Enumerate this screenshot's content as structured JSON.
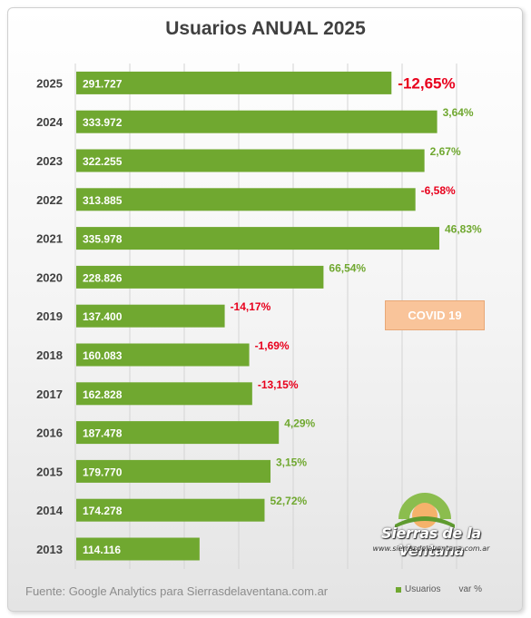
{
  "chart_data": {
    "type": "bar",
    "orientation": "horizontal",
    "title": "Usuarios ANUAL 2025",
    "categories": [
      "2025",
      "2024",
      "2023",
      "2022",
      "2021",
      "2020",
      "2019",
      "2018",
      "2017",
      "2016",
      "2015",
      "2014",
      "2013"
    ],
    "series": [
      {
        "name": "Usuarios",
        "values": [
          291727,
          333972,
          322255,
          313885,
          335978,
          228826,
          137400,
          160083,
          162828,
          187478,
          179770,
          174278,
          114116
        ],
        "value_labels": [
          "291.727",
          "333.972",
          "322.255",
          "313.885",
          "335.978",
          "228.826",
          "137.400",
          "160.083",
          "162.828",
          "187.478",
          "179.770",
          "174.278",
          "114.116"
        ],
        "color": "#70a830"
      },
      {
        "name": "var %",
        "labels": [
          "-12,65%",
          "3,64%",
          "2,67%",
          "-6,58%",
          "46,83%",
          "66,54%",
          "-14,17%",
          "-1,69%",
          "-13,15%",
          "4,29%",
          "3,15%",
          "52,72%",
          ""
        ]
      }
    ],
    "positive_color": "#70a830",
    "negative_color": "#e8001c",
    "grid": true,
    "legend": "bottom-right",
    "annotation": "COVID 19"
  },
  "source_text": "Fuente: Google Analytics para Sierrasdelaventana.com.ar",
  "legend": {
    "series1": "Usuarios",
    "series2": "var %"
  },
  "logo": {
    "brand": "Sierras de la Ventana",
    "url": "www.sierrasdelaventana.com.ar"
  }
}
